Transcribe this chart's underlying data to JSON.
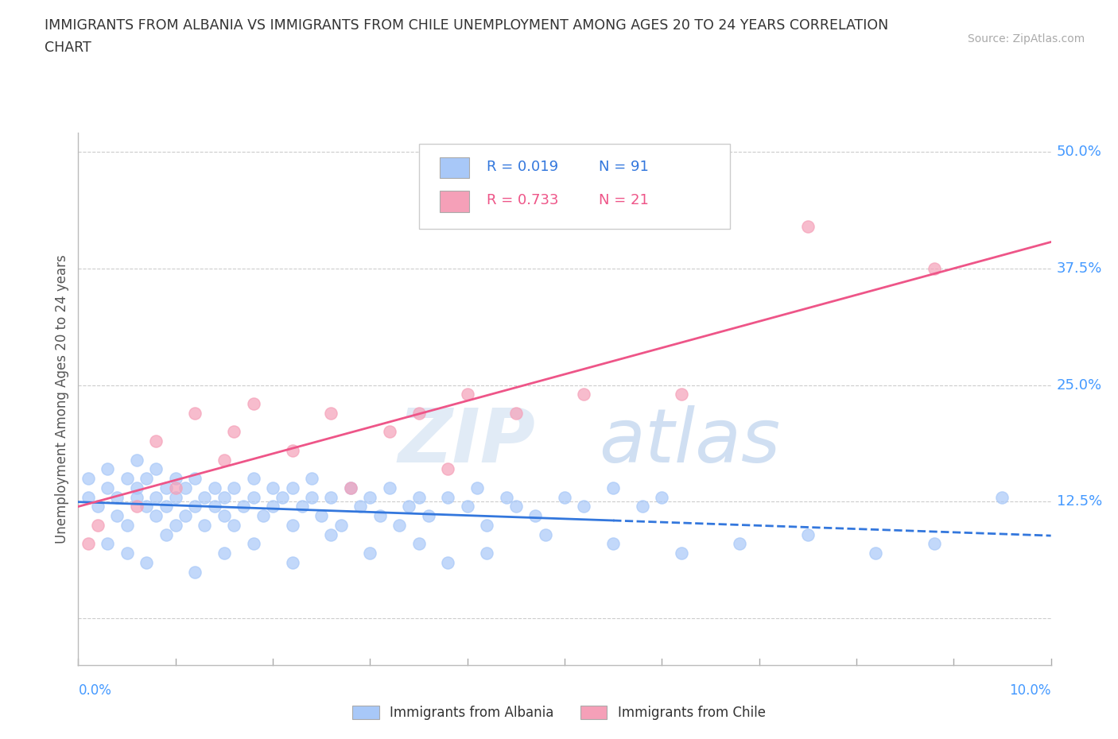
{
  "title_line1": "IMMIGRANTS FROM ALBANIA VS IMMIGRANTS FROM CHILE UNEMPLOYMENT AMONG AGES 20 TO 24 YEARS CORRELATION",
  "title_line2": "CHART",
  "source": "Source: ZipAtlas.com",
  "ylabel": "Unemployment Among Ages 20 to 24 years",
  "albania_color": "#a8c8f8",
  "chile_color": "#f5a0b8",
  "albania_line_color": "#3377dd",
  "chile_line_color": "#ee5588",
  "albania_R": 0.019,
  "albania_N": 91,
  "chile_R": 0.733,
  "chile_N": 21,
  "watermark_zip": "ZIP",
  "watermark_atlas": "atlas",
  "grid_color": "#cccccc",
  "ytick_color": "#4499ff",
  "xtick_color": "#4499ff",
  "xmin": 0.0,
  "xmax": 0.1,
  "ymin": -0.05,
  "ymax": 0.52,
  "ytick_vals": [
    0.0,
    0.125,
    0.25,
    0.375,
    0.5
  ],
  "ytick_labels": [
    "",
    "12.5%",
    "25.0%",
    "37.5%",
    "50.0%"
  ],
  "xtick_vals": [
    0.0,
    0.01,
    0.02,
    0.03,
    0.04,
    0.05,
    0.06,
    0.07,
    0.08,
    0.09,
    0.1
  ],
  "albania_x": [
    0.001,
    0.001,
    0.002,
    0.003,
    0.003,
    0.004,
    0.004,
    0.005,
    0.005,
    0.006,
    0.006,
    0.006,
    0.007,
    0.007,
    0.008,
    0.008,
    0.008,
    0.009,
    0.009,
    0.01,
    0.01,
    0.01,
    0.011,
    0.011,
    0.012,
    0.012,
    0.013,
    0.013,
    0.014,
    0.014,
    0.015,
    0.015,
    0.016,
    0.016,
    0.017,
    0.018,
    0.018,
    0.019,
    0.02,
    0.02,
    0.021,
    0.022,
    0.022,
    0.023,
    0.024,
    0.024,
    0.025,
    0.026,
    0.027,
    0.028,
    0.029,
    0.03,
    0.031,
    0.032,
    0.033,
    0.034,
    0.035,
    0.036,
    0.038,
    0.04,
    0.041,
    0.042,
    0.044,
    0.045,
    0.047,
    0.05,
    0.052,
    0.055,
    0.058,
    0.06,
    0.003,
    0.005,
    0.007,
    0.009,
    0.012,
    0.015,
    0.018,
    0.022,
    0.026,
    0.03,
    0.035,
    0.038,
    0.042,
    0.048,
    0.055,
    0.062,
    0.068,
    0.075,
    0.082,
    0.088,
    0.095
  ],
  "albania_y": [
    0.13,
    0.15,
    0.12,
    0.14,
    0.16,
    0.11,
    0.13,
    0.15,
    0.1,
    0.13,
    0.14,
    0.17,
    0.12,
    0.15,
    0.11,
    0.13,
    0.16,
    0.12,
    0.14,
    0.1,
    0.13,
    0.15,
    0.11,
    0.14,
    0.12,
    0.15,
    0.1,
    0.13,
    0.12,
    0.14,
    0.11,
    0.13,
    0.1,
    0.14,
    0.12,
    0.13,
    0.15,
    0.11,
    0.12,
    0.14,
    0.13,
    0.1,
    0.14,
    0.12,
    0.13,
    0.15,
    0.11,
    0.13,
    0.1,
    0.14,
    0.12,
    0.13,
    0.11,
    0.14,
    0.1,
    0.12,
    0.13,
    0.11,
    0.13,
    0.12,
    0.14,
    0.1,
    0.13,
    0.12,
    0.11,
    0.13,
    0.12,
    0.14,
    0.12,
    0.13,
    0.08,
    0.07,
    0.06,
    0.09,
    0.05,
    0.07,
    0.08,
    0.06,
    0.09,
    0.07,
    0.08,
    0.06,
    0.07,
    0.09,
    0.08,
    0.07,
    0.08,
    0.09,
    0.07,
    0.08,
    0.13
  ],
  "chile_x": [
    0.001,
    0.002,
    0.006,
    0.008,
    0.01,
    0.012,
    0.015,
    0.016,
    0.018,
    0.022,
    0.026,
    0.028,
    0.032,
    0.035,
    0.038,
    0.04,
    0.045,
    0.052,
    0.062,
    0.075,
    0.088
  ],
  "chile_y": [
    0.08,
    0.1,
    0.12,
    0.19,
    0.14,
    0.22,
    0.17,
    0.2,
    0.23,
    0.18,
    0.22,
    0.14,
    0.2,
    0.22,
    0.16,
    0.24,
    0.22,
    0.24,
    0.24,
    0.42,
    0.375
  ]
}
